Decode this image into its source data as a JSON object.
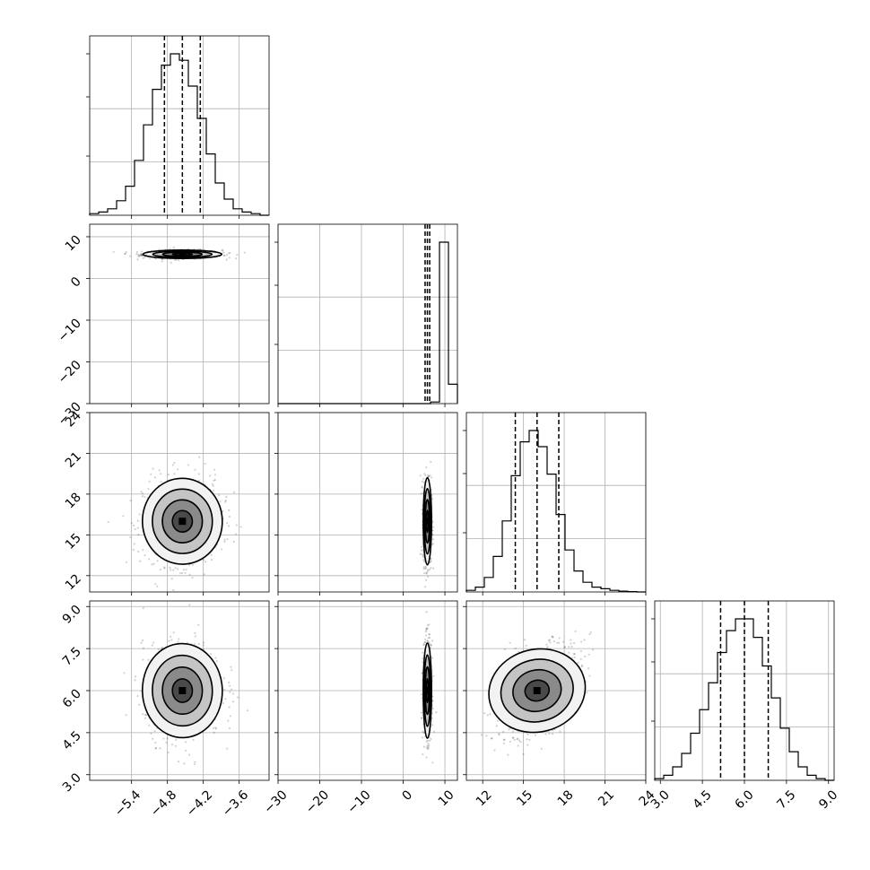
{
  "chart_data": {
    "type": "corner",
    "params": [
      {
        "range": [
          -6.1,
          -3.1
        ],
        "ticks": [
          -5.4,
          -4.8,
          -4.2,
          -3.6
        ],
        "tick_labels": [
          "−5.4",
          "−4.8",
          "−4.2",
          "−3.6"
        ],
        "mean": -4.55,
        "sd": 0.33,
        "quantiles": [
          -4.85,
          -4.55,
          -4.25
        ]
      },
      {
        "range": [
          -30,
          13
        ],
        "ticks": [
          -30,
          -20,
          -10,
          0,
          10
        ],
        "tick_labels": [
          "−30",
          "−20",
          "−10",
          "0",
          "10"
        ],
        "mean": 5.8,
        "sd": 0.5,
        "quantiles": [
          5.25,
          5.8,
          6.35
        ]
      },
      {
        "range": [
          10.8,
          24
        ],
        "ticks": [
          12,
          15,
          18,
          21,
          24
        ],
        "tick_labels": [
          "12",
          "15",
          "18",
          "21",
          "24"
        ],
        "mean": 16.0,
        "sd": 1.6,
        "quantiles": [
          14.4,
          16.0,
          17.6
        ]
      },
      {
        "range": [
          2.8,
          9.2
        ],
        "ticks": [
          3.0,
          4.5,
          6.0,
          7.5,
          9.0
        ],
        "tick_labels": [
          "3.0",
          "4.5",
          "6.0",
          "7.5",
          "9.0"
        ],
        "mean": 6.0,
        "sd": 0.85,
        "quantiles": [
          5.15,
          6.0,
          6.85
        ]
      }
    ],
    "histograms": [
      {
        "param": 0,
        "bin_edges": [
          -6.1,
          -3.1
        ],
        "counts": [
          1,
          2,
          4,
          9,
          18,
          34,
          56,
          78,
          93,
          100,
          96,
          80,
          60,
          38,
          20,
          10,
          4,
          2,
          1,
          0
        ]
      },
      {
        "param": 1,
        "bin_edges": [
          -30,
          13
        ],
        "counts": [
          0,
          0,
          0,
          0,
          0,
          0,
          0,
          0,
          0,
          0,
          0,
          0,
          0,
          0,
          0,
          0,
          0,
          1,
          100,
          12
        ]
      },
      {
        "param": 2,
        "bin_edges": [
          10.8,
          24
        ],
        "counts": [
          1,
          3,
          9,
          22,
          44,
          72,
          93,
          100,
          90,
          73,
          48,
          26,
          13,
          6,
          3,
          2,
          1,
          0.5,
          0.2,
          0
        ]
      },
      {
        "param": 3,
        "bin_edges": [
          2.8,
          9.2
        ],
        "counts": [
          1,
          3,
          8,
          16,
          28,
          42,
          58,
          76,
          89,
          96,
          96,
          85,
          68,
          49,
          31,
          17,
          8,
          3,
          1,
          0
        ]
      }
    ],
    "correlations": [
      {
        "params": [
          0,
          1
        ],
        "r": 0.0
      },
      {
        "params": [
          0,
          2
        ],
        "r": 0.05
      },
      {
        "params": [
          1,
          2
        ],
        "r": 0.0
      },
      {
        "params": [
          0,
          3
        ],
        "r": 0.05
      },
      {
        "params": [
          1,
          3
        ],
        "r": 0.0
      },
      {
        "params": [
          2,
          3
        ],
        "r": 0.5
      }
    ],
    "contour_levels_sigma": [
      0.5,
      1.0,
      1.5,
      2.0
    ],
    "grid": true,
    "title": "",
    "xlabel": "",
    "ylabel": ""
  }
}
